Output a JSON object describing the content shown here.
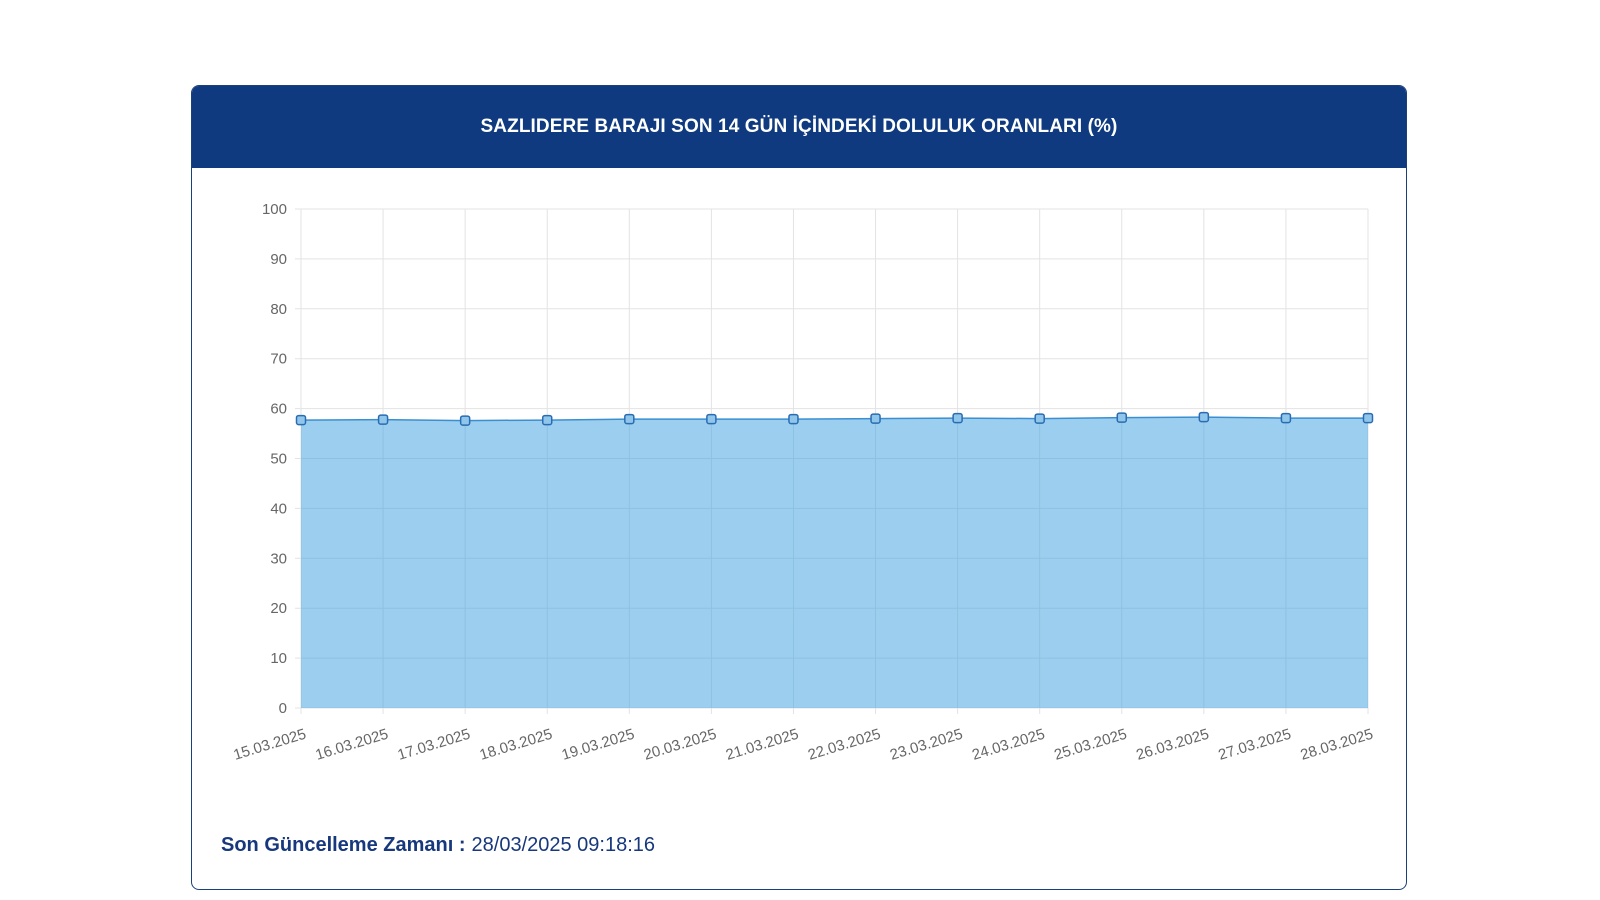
{
  "colors": {
    "header_bg": "#0f3a7f",
    "card_border": "#1d3f7c",
    "area_fill": "#3aa0e0",
    "line": "#3b8fd0",
    "point_fill": "#8fc6ea",
    "point_border": "#2a6cb3",
    "grid": "#e3e3e3",
    "tick_text": "#666666",
    "footer_text": "#17387c"
  },
  "chart_data": {
    "type": "area",
    "title": "SAZLIDERE BARAJI SON 14 GÜN İÇİNDEKİ DOLULUK ORANLARI (%)",
    "categories": [
      "15.03.2025",
      "16.03.2025",
      "17.03.2025",
      "18.03.2025",
      "19.03.2025",
      "20.03.2025",
      "21.03.2025",
      "22.03.2025",
      "23.03.2025",
      "24.03.2025",
      "25.03.2025",
      "26.03.2025",
      "27.03.2025",
      "28.03.2025"
    ],
    "series": [
      {
        "values": [
          57.7,
          57.8,
          57.6,
          57.7,
          57.9,
          57.9,
          57.9,
          58.0,
          58.1,
          58.0,
          58.2,
          58.3,
          58.1,
          58.1
        ]
      }
    ],
    "ylim": [
      0,
      100
    ],
    "yticks": [
      0,
      10,
      20,
      30,
      40,
      50,
      60,
      70,
      80,
      90,
      100
    ],
    "grid": true,
    "legend": "none"
  },
  "footer": {
    "label": "Son Güncelleme Zamanı :",
    "value": "28/03/2025 09:18:16"
  }
}
